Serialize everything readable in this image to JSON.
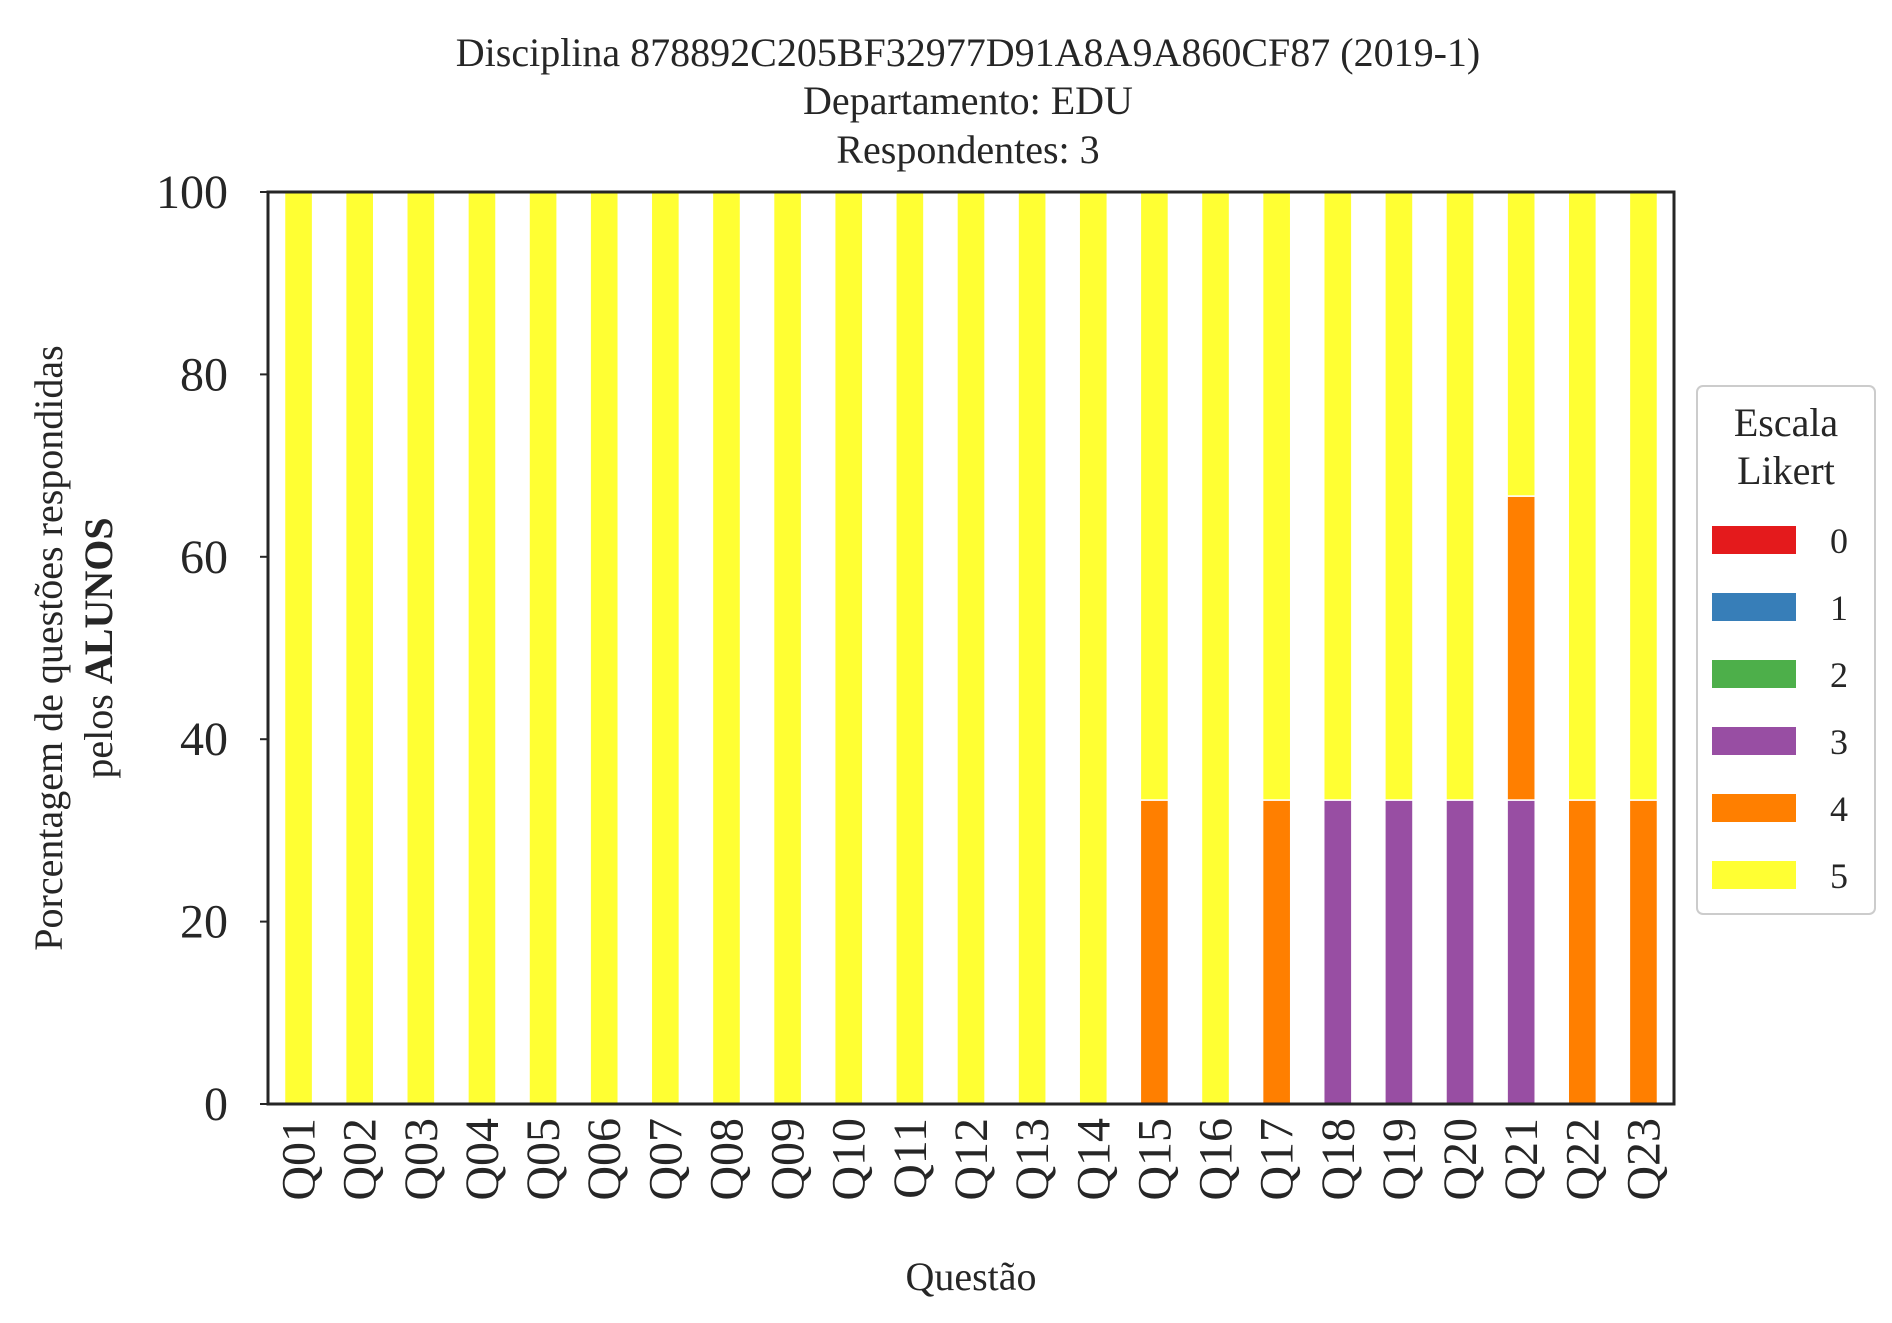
{
  "chart_data": {
    "type": "bar",
    "stacked": true,
    "title_lines": [
      "Disciplina 878892C205BF32977D91A8A9A860CF87 (2019-1)",
      "Departamento: EDU",
      "Respondentes: 3"
    ],
    "xlabel": "Questão",
    "ylabel_line1": "Porcentagem de questões respondidas",
    "ylabel_line2_prefix": "pelos ",
    "ylabel_line2_bold": "ALUNOS",
    "ylim": [
      0,
      100
    ],
    "yticks": [
      "0",
      "20",
      "40",
      "60",
      "80",
      "100"
    ],
    "grid": false,
    "categories": [
      "Q01",
      "Q02",
      "Q03",
      "Q04",
      "Q05",
      "Q06",
      "Q07",
      "Q08",
      "Q09",
      "Q10",
      "Q11",
      "Q12",
      "Q13",
      "Q14",
      "Q15",
      "Q16",
      "Q17",
      "Q18",
      "Q19",
      "Q20",
      "Q21",
      "Q22",
      "Q23"
    ],
    "legend": {
      "title_line1": "Escala",
      "title_line2": "Likert",
      "placement": "center-right outside"
    },
    "series": [
      {
        "name": "0",
        "color": "#e41a1c",
        "values": [
          0,
          0,
          0,
          0,
          0,
          0,
          0,
          0,
          0,
          0,
          0,
          0,
          0,
          0,
          0,
          0,
          0,
          0,
          0,
          0,
          0,
          0,
          0
        ]
      },
      {
        "name": "1",
        "color": "#377eb8",
        "values": [
          0,
          0,
          0,
          0,
          0,
          0,
          0,
          0,
          0,
          0,
          0,
          0,
          0,
          0,
          0,
          0,
          0,
          0,
          0,
          0,
          0,
          0,
          0
        ]
      },
      {
        "name": "2",
        "color": "#4daf4a",
        "values": [
          0,
          0,
          0,
          0,
          0,
          0,
          0,
          0,
          0,
          0,
          0,
          0,
          0,
          0,
          0,
          0,
          0,
          0,
          0,
          0,
          0,
          0,
          0
        ]
      },
      {
        "name": "3",
        "color": "#984ea3",
        "values": [
          0,
          0,
          0,
          0,
          0,
          0,
          0,
          0,
          0,
          0,
          0,
          0,
          0,
          0,
          0,
          0,
          0,
          33.33,
          33.33,
          33.33,
          33.33,
          0,
          0
        ]
      },
      {
        "name": "4",
        "color": "#ff7f00",
        "values": [
          0,
          0,
          0,
          0,
          0,
          0,
          0,
          0,
          0,
          0,
          0,
          0,
          0,
          0,
          33.33,
          0,
          33.33,
          0,
          0,
          0,
          33.33,
          33.33,
          33.33
        ]
      },
      {
        "name": "5",
        "color": "#ffff33",
        "values": [
          100,
          100,
          100,
          100,
          100,
          100,
          100,
          100,
          100,
          100,
          100,
          100,
          100,
          100,
          66.67,
          100,
          66.67,
          66.67,
          66.67,
          66.67,
          33.33,
          66.67,
          66.67
        ]
      }
    ]
  }
}
